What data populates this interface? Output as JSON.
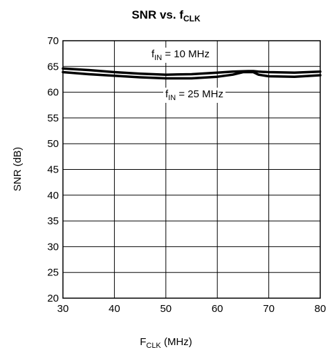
{
  "chart_data": {
    "type": "line",
    "title": {
      "main": "SNR vs. f",
      "sub": "CLK"
    },
    "xlabel": {
      "main": "F",
      "sub": "CLK",
      "rest": " (MHz)"
    },
    "ylabel": "SNR (dB)",
    "xlim": [
      30,
      80
    ],
    "ylim": [
      20,
      70
    ],
    "xticks": [
      30,
      40,
      50,
      60,
      70,
      80
    ],
    "yticks": [
      20,
      25,
      30,
      35,
      40,
      45,
      50,
      55,
      60,
      65,
      70
    ],
    "grid": true,
    "colors": {
      "line": "#000000",
      "grid": "#000000",
      "background": "#ffffff"
    },
    "series": [
      {
        "name": "fIN = 10 MHz",
        "label": {
          "pre": "f",
          "sub": "IN",
          "post": " = 10 MHz"
        },
        "x": [
          30,
          35,
          40,
          45,
          50,
          55,
          60,
          63,
          66,
          67,
          68,
          70,
          75,
          80
        ],
        "y": [
          64.6,
          64.3,
          63.9,
          63.6,
          63.4,
          63.5,
          63.8,
          64.0,
          64.1,
          64.1,
          64.0,
          63.9,
          63.8,
          64.0
        ]
      },
      {
        "name": "fIN = 25 MHz",
        "label": {
          "pre": "f",
          "sub": "IN",
          "post": " = 25 MHz"
        },
        "x": [
          30,
          35,
          40,
          45,
          50,
          55,
          60,
          63,
          65,
          67,
          68,
          70,
          75,
          80
        ],
        "y": [
          63.9,
          63.5,
          63.2,
          62.9,
          62.7,
          62.7,
          63.0,
          63.4,
          63.9,
          63.9,
          63.4,
          63.1,
          63.0,
          63.3
        ]
      }
    ]
  }
}
